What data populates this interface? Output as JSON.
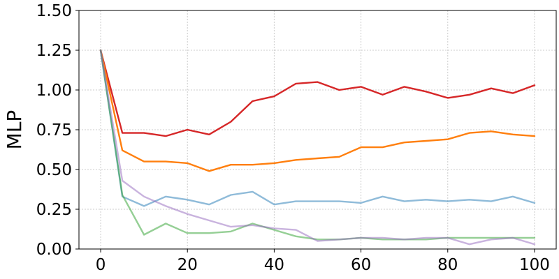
{
  "chart_data": {
    "type": "line",
    "title": "",
    "xlabel": "",
    "ylabel": "MLP",
    "xlim": [
      -5,
      105
    ],
    "ylim": [
      0.0,
      1.5
    ],
    "grid": true,
    "x_ticks": [
      0,
      20,
      40,
      60,
      80,
      100
    ],
    "x_tick_labels": [
      "0",
      "20",
      "40",
      "60",
      "80",
      "100"
    ],
    "y_ticks": [
      0.0,
      0.25,
      0.5,
      0.75,
      1.0,
      1.25,
      1.5
    ],
    "y_tick_labels": [
      "0.00",
      "0.25",
      "0.50",
      "0.75",
      "1.00",
      "1.25",
      "1.50"
    ],
    "x": [
      0,
      5,
      10,
      15,
      20,
      25,
      30,
      35,
      40,
      45,
      50,
      55,
      60,
      65,
      70,
      75,
      80,
      85,
      90,
      95,
      100
    ],
    "series": [
      {
        "color": "#d62728",
        "opacity": 1,
        "values": [
          1.25,
          0.73,
          0.73,
          0.71,
          0.75,
          0.72,
          0.8,
          0.93,
          0.96,
          1.04,
          1.05,
          1.0,
          1.02,
          0.97,
          1.02,
          0.99,
          0.95,
          0.97,
          1.01,
          0.98,
          1.03
        ]
      },
      {
        "color": "#ff7f0e",
        "opacity": 1,
        "values": [
          1.25,
          0.62,
          0.55,
          0.55,
          0.54,
          0.49,
          0.53,
          0.53,
          0.54,
          0.56,
          0.57,
          0.58,
          0.64,
          0.64,
          0.67,
          0.68,
          0.69,
          0.73,
          0.74,
          0.72,
          0.71
        ]
      },
      {
        "color": "#1f77b4",
        "opacity": 0.5,
        "values": [
          1.25,
          0.33,
          0.27,
          0.33,
          0.31,
          0.28,
          0.34,
          0.36,
          0.28,
          0.3,
          0.3,
          0.3,
          0.29,
          0.33,
          0.3,
          0.31,
          0.3,
          0.31,
          0.3,
          0.33,
          0.29
        ]
      },
      {
        "color": "#2ca02c",
        "opacity": 0.5,
        "values": [
          1.25,
          0.34,
          0.09,
          0.16,
          0.1,
          0.1,
          0.11,
          0.16,
          0.12,
          0.08,
          0.06,
          0.06,
          0.07,
          0.06,
          0.06,
          0.06,
          0.07,
          0.07,
          0.07,
          0.07,
          0.07
        ]
      },
      {
        "color": "#9467bd",
        "opacity": 0.5,
        "values": [
          1.25,
          0.43,
          0.33,
          0.27,
          0.22,
          0.18,
          0.14,
          0.15,
          0.13,
          0.12,
          0.05,
          0.06,
          0.07,
          0.07,
          0.06,
          0.07,
          0.07,
          0.03,
          0.06,
          0.07,
          0.03
        ]
      }
    ]
  }
}
